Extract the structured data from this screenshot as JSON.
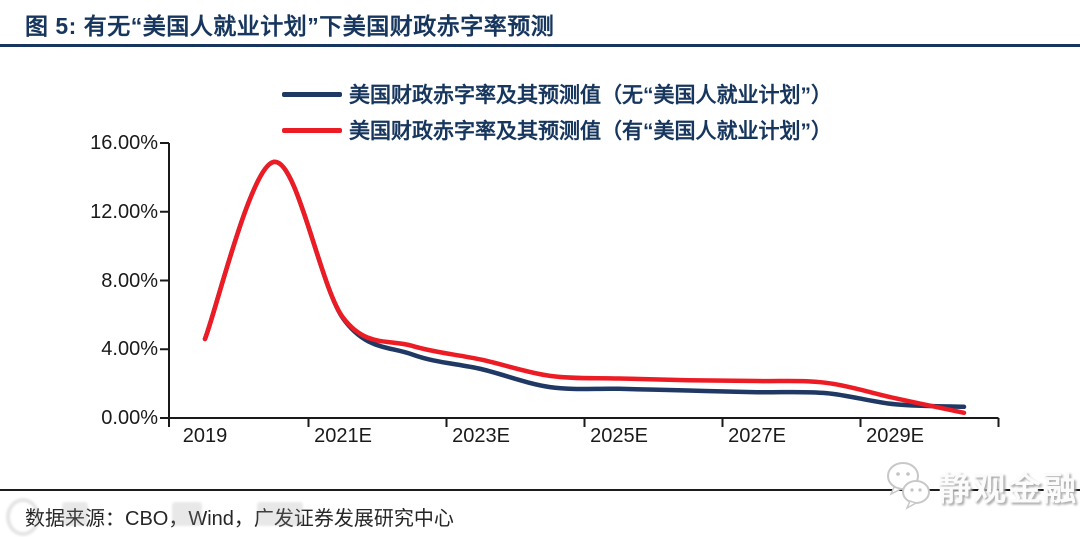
{
  "header": {
    "rule_color": "#17365d"
  },
  "footer": {
    "source": "数据来源：CBO，Wind，广发证券发展研究中心"
  },
  "watermark": {
    "label": "静观金融",
    "icon": "wechat-chat-bubbles-icon"
  },
  "chart_data": {
    "type": "line",
    "title": "图 5:  有无“美国人就业计划”下美国财政赤字率预测",
    "xlabel": "",
    "ylabel": "",
    "x": [
      2019,
      2020,
      2021,
      2022,
      2023,
      2024,
      2025,
      2026,
      2027,
      2028,
      2029,
      2030
    ],
    "series": [
      {
        "name": "美国财政赤字率及其预测值（无“美国人就业计划”）",
        "color": "#1f3864",
        "values": [
          4.6,
          14.9,
          5.8,
          3.7,
          2.85,
          1.8,
          1.7,
          1.6,
          1.5,
          1.45,
          0.8,
          0.65
        ]
      },
      {
        "name": "美国财政赤字率及其预测值（有“美国人就业计划”）",
        "color": "#ed1c24",
        "values": [
          4.6,
          14.9,
          5.85,
          4.2,
          3.4,
          2.45,
          2.3,
          2.2,
          2.15,
          2.05,
          1.15,
          0.3
        ]
      }
    ],
    "yticks": [
      {
        "value": 0,
        "label": "0.00%"
      },
      {
        "value": 4,
        "label": "4.00%"
      },
      {
        "value": 8,
        "label": "8.00%"
      },
      {
        "value": 12,
        "label": "12.00%"
      },
      {
        "value": 16,
        "label": "16.00%"
      }
    ],
    "xticks": [
      {
        "year": 2019,
        "label": "2019"
      },
      {
        "year": 2021,
        "label": "2021E"
      },
      {
        "year": 2023,
        "label": "2023E"
      },
      {
        "year": 2025,
        "label": "2025E"
      },
      {
        "year": 2027,
        "label": "2027E"
      },
      {
        "year": 2029,
        "label": "2029E"
      }
    ],
    "ylim": [
      0,
      16
    ],
    "grid": false,
    "legend_position": "top",
    "axis_color": "#1a1a1a"
  }
}
